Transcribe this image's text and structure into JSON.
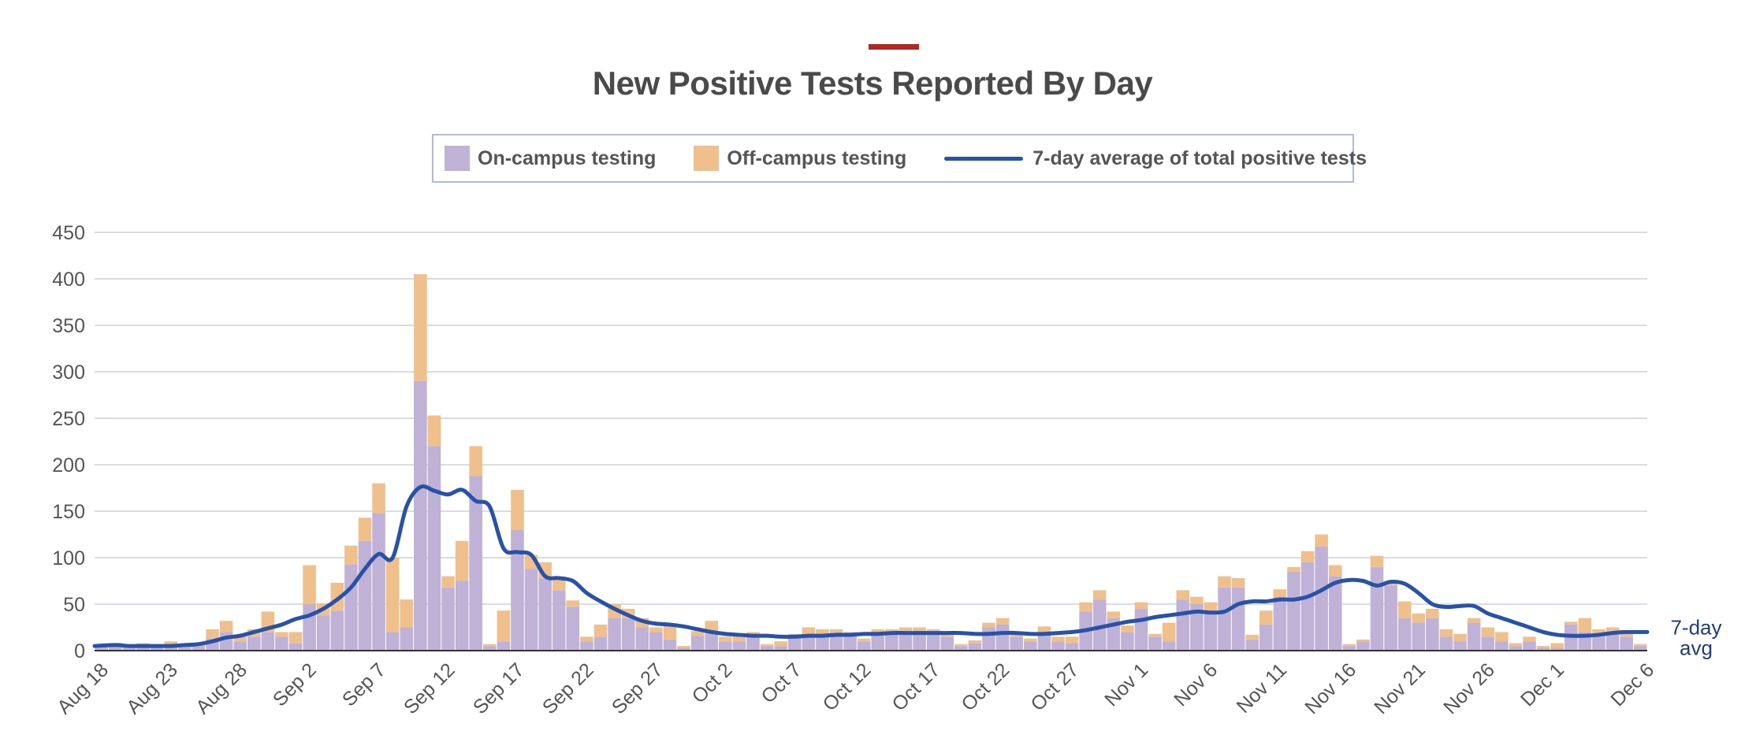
{
  "colors": {
    "accent": "#b5261e",
    "on_campus": "#c0b2d6",
    "off_campus": "#f0c08c",
    "avg_line": "#2752a8",
    "grid": "#d9dde3",
    "axis": "#555555"
  },
  "chart_data": {
    "type": "bar",
    "stacked": true,
    "title": "New Positive Tests Reported By Day",
    "xlabel": "",
    "ylabel": "",
    "ylim": [
      0,
      450
    ],
    "yticks": [
      0,
      50,
      100,
      150,
      200,
      250,
      300,
      350,
      400,
      450
    ],
    "grid": true,
    "legend_position": "top-center",
    "x_tick_labels": [
      "Aug 18",
      "Aug 23",
      "Aug 28",
      "Sep 2",
      "Sep 7",
      "Sep 12",
      "Sep 17",
      "Sep 22",
      "Sep 27",
      "Oct 2",
      "Oct 7",
      "Oct 12",
      "Oct 17",
      "Oct 22",
      "Oct 27",
      "Nov 1",
      "Nov 6",
      "Nov 11",
      "Nov 16",
      "Nov 21",
      "Nov 26",
      "Dec 1",
      "Dec 6"
    ],
    "x_tick_every": 5,
    "series": [
      {
        "name": "On-campus testing",
        "kind": "bar",
        "values": [
          5,
          6,
          4,
          6,
          5,
          7,
          5,
          5,
          13,
          20,
          10,
          15,
          20,
          15,
          8,
          50,
          38,
          43,
          93,
          118,
          148,
          20,
          25,
          290,
          220,
          68,
          75,
          188,
          5,
          10,
          130,
          88,
          78,
          65,
          47,
          10,
          15,
          35,
          35,
          25,
          20,
          12,
          3,
          16,
          20,
          10,
          10,
          15,
          5,
          5,
          15,
          15,
          18,
          20,
          15,
          10,
          18,
          18,
          18,
          18,
          18,
          15,
          5,
          8,
          25,
          28,
          15,
          10,
          18,
          10,
          8,
          42,
          55,
          35,
          20,
          45,
          15,
          10,
          55,
          50,
          42,
          68,
          68,
          12,
          28,
          58,
          85,
          95,
          112,
          80,
          5,
          10,
          90,
          70,
          35,
          30,
          35,
          15,
          10,
          30,
          15,
          10,
          5,
          10,
          3,
          3,
          28,
          20,
          15,
          20,
          15,
          5
        ]
      },
      {
        "name": "Off-campus testing",
        "kind": "bar",
        "values": [
          1,
          2,
          1,
          2,
          1,
          3,
          1,
          2,
          10,
          12,
          5,
          8,
          22,
          5,
          12,
          42,
          13,
          30,
          20,
          25,
          32,
          80,
          30,
          115,
          33,
          12,
          43,
          32,
          2,
          33,
          43,
          15,
          17,
          15,
          7,
          5,
          13,
          15,
          10,
          10,
          5,
          15,
          2,
          5,
          12,
          5,
          5,
          5,
          2,
          5,
          3,
          10,
          5,
          3,
          5,
          3,
          5,
          5,
          7,
          7,
          5,
          3,
          2,
          3,
          5,
          7,
          3,
          3,
          8,
          5,
          7,
          10,
          10,
          7,
          7,
          7,
          3,
          20,
          10,
          8,
          10,
          12,
          10,
          5,
          15,
          8,
          5,
          12,
          13,
          12,
          2,
          2,
          12,
          5,
          18,
          10,
          10,
          8,
          8,
          5,
          10,
          10,
          3,
          5,
          2,
          5,
          3,
          15,
          8,
          5,
          5,
          2
        ]
      },
      {
        "name": "7-day average of total positive tests",
        "kind": "line",
        "values": [
          5,
          6,
          5,
          5,
          5,
          5,
          6,
          7,
          10,
          14,
          16,
          20,
          24,
          28,
          34,
          38,
          45,
          55,
          68,
          88,
          104,
          100,
          155,
          176,
          172,
          168,
          173,
          161,
          155,
          110,
          106,
          103,
          80,
          78,
          75,
          62,
          53,
          45,
          38,
          32,
          29,
          28,
          26,
          23,
          20,
          18,
          17,
          16,
          16,
          15,
          15,
          16,
          16,
          17,
          17,
          18,
          18,
          19,
          19,
          19,
          19,
          19,
          19,
          18,
          18,
          19,
          19,
          18,
          18,
          19,
          20,
          22,
          25,
          28,
          31,
          33,
          36,
          38,
          40,
          42,
          41,
          42,
          50,
          53,
          53,
          55,
          55,
          58,
          65,
          73,
          76,
          75,
          70,
          74,
          72,
          62,
          50,
          47,
          48,
          48,
          40,
          35,
          30,
          25,
          20,
          17,
          16,
          16,
          17,
          19,
          20,
          20
        ]
      }
    ],
    "end_label": [
      "7-day",
      "avg"
    ]
  }
}
